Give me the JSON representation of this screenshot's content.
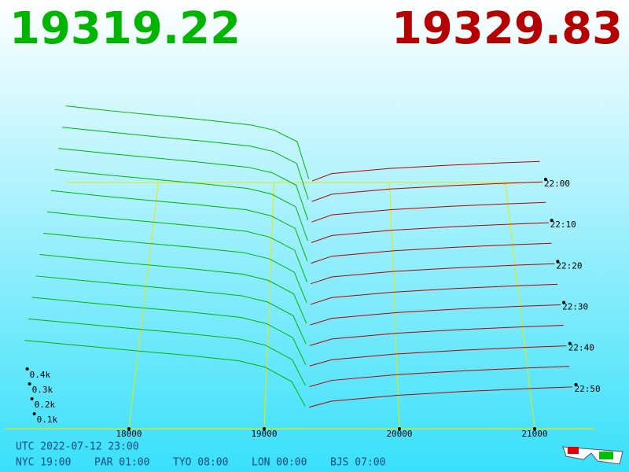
{
  "chart_data": {
    "type": "depth3d",
    "bid": 19319.22,
    "ask": 19329.83,
    "bid_color": "#00b400",
    "ask_color": "#b40000",
    "xticks": [
      18000,
      19000,
      20000,
      21000
    ],
    "yticks": [
      {
        "value": 100,
        "label": "0.1k"
      },
      {
        "value": 200,
        "label": "0.2k"
      },
      {
        "value": 300,
        "label": "0.3k"
      },
      {
        "value": 400,
        "label": "0.4k"
      }
    ],
    "tlim": [
      "22:00",
      "23:00"
    ],
    "tticks": [
      "22:00",
      "22:10",
      "22:20",
      "22:30",
      "22:40",
      "22:50"
    ],
    "times": [
      "22:00",
      "22:05",
      "22:10",
      "22:15",
      "22:20",
      "22:25",
      "22:30",
      "22:35",
      "22:40",
      "22:45",
      "22:50",
      "22:55"
    ],
    "bid_prices": [
      17200,
      17600,
      18000,
      18400,
      18800,
      19000,
      19200,
      19300
    ],
    "bid_depths": [
      [
        600,
        560,
        525,
        490,
        450,
        410,
        320,
        30
      ],
      [
        585,
        548,
        512,
        478,
        440,
        398,
        305,
        28
      ],
      [
        572,
        535,
        500,
        466,
        428,
        386,
        292,
        26
      ],
      [
        560,
        522,
        488,
        455,
        418,
        375,
        280,
        25
      ],
      [
        548,
        510,
        476,
        444,
        406,
        362,
        268,
        24
      ],
      [
        535,
        498,
        465,
        432,
        395,
        350,
        255,
        22
      ],
      [
        522,
        486,
        452,
        420,
        382,
        338,
        242,
        21
      ],
      [
        510,
        474,
        440,
        408,
        370,
        326,
        230,
        20
      ],
      [
        497,
        462,
        428,
        396,
        358,
        314,
        218,
        18
      ],
      [
        485,
        450,
        416,
        384,
        346,
        302,
        205,
        17
      ],
      [
        472,
        438,
        404,
        372,
        334,
        290,
        192,
        15
      ],
      [
        460,
        426,
        392,
        360,
        322,
        278,
        180,
        14
      ]
    ],
    "ask_prices": [
      19330,
      19500,
      20000,
      20500,
      21000,
      21300
    ],
    "ask_depths": [
      [
        12,
        70,
        110,
        135,
        155,
        165
      ],
      [
        12,
        68,
        108,
        133,
        153,
        163
      ],
      [
        11,
        66,
        106,
        131,
        151,
        161
      ],
      [
        11,
        64,
        104,
        130,
        150,
        160
      ],
      [
        10,
        62,
        102,
        128,
        148,
        158
      ],
      [
        10,
        60,
        100,
        126,
        146,
        156
      ],
      [
        9,
        58,
        98,
        124,
        144,
        154
      ],
      [
        9,
        56,
        96,
        122,
        142,
        152
      ],
      [
        8,
        54,
        94,
        120,
        140,
        150
      ],
      [
        8,
        52,
        92,
        118,
        138,
        148
      ],
      [
        7,
        50,
        90,
        116,
        136,
        146
      ],
      [
        7,
        48,
        88,
        114,
        134,
        144
      ]
    ],
    "utc": "UTC 2022-07-12 23:00",
    "clocks": [
      "NYC 19:00",
      "PAR 01:00",
      "TYO 08:00",
      "LON 00:00",
      "BJS 07:00"
    ]
  }
}
